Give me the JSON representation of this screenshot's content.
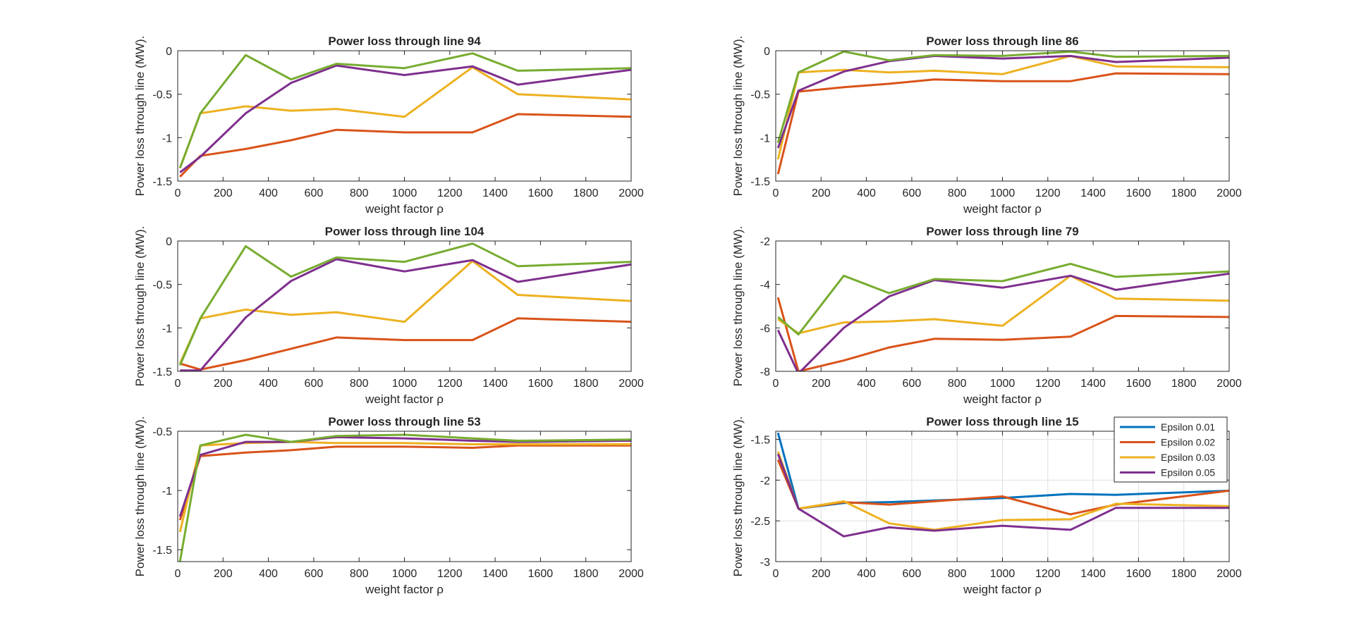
{
  "legend": {
    "entries": [
      "Epsilon 0.01",
      "Epsilon 0.02",
      "Epsilon 0.03",
      "Epsilon 0.05"
    ],
    "location": "northeast",
    "axis_index": 5
  },
  "colors": {
    "Epsilon 0.01": "#0072BD",
    "Epsilon 0.02": "#D95319",
    "Epsilon 0.03": "#EDB120",
    "Epsilon 0.05": "#7E2F8E",
    "unlabeled": "#77AC30",
    "axis": "#262626",
    "grid": "#dfdfdf"
  },
  "chart_data": [
    {
      "type": "line",
      "title": "Power loss through line 94",
      "xlabel": "weight factor ρ",
      "ylabel": "Power loss through line (MW).",
      "x": [
        10,
        100,
        300,
        500,
        700,
        1000,
        1300,
        1500,
        2000
      ],
      "xlim": [
        0,
        2000
      ],
      "ylim": [
        -1.5,
        0
      ],
      "xticks": [
        "0",
        "200",
        "400",
        "600",
        "800",
        "1000",
        "1200",
        "1400",
        "1600",
        "1800",
        "2000"
      ],
      "yticks": [
        "-1.5",
        "-1",
        "-0.5",
        "0"
      ],
      "grid": false,
      "series": [
        {
          "name": "Epsilon 0.02",
          "values": [
            -1.45,
            -1.21,
            -1.13,
            -1.03,
            -0.91,
            -0.94,
            -0.94,
            -0.73,
            -0.76
          ]
        },
        {
          "name": "Epsilon 0.03",
          "values": [
            -1.35,
            -0.72,
            -0.64,
            -0.69,
            -0.67,
            -0.76,
            -0.19,
            -0.5,
            -0.56
          ]
        },
        {
          "name": "Epsilon 0.05",
          "values": [
            -1.4,
            -1.22,
            -0.72,
            -0.37,
            -0.17,
            -0.28,
            -0.18,
            -0.39,
            -0.22
          ]
        },
        {
          "name": "",
          "values": [
            -1.35,
            -0.72,
            -0.05,
            -0.33,
            -0.15,
            -0.2,
            -0.03,
            -0.23,
            -0.2
          ]
        }
      ]
    },
    {
      "type": "line",
      "title": "Power loss through line 86",
      "xlabel": "weight factor ρ",
      "ylabel": "Power loss through line (MW).",
      "x": [
        10,
        100,
        300,
        500,
        700,
        1000,
        1300,
        1500,
        2000
      ],
      "xlim": [
        0,
        2000
      ],
      "ylim": [
        -1.5,
        0
      ],
      "xticks": [
        "0",
        "200",
        "400",
        "600",
        "800",
        "1000",
        "1200",
        "1400",
        "1600",
        "1800",
        "2000"
      ],
      "yticks": [
        "-1.5",
        "-1",
        "-0.5",
        "0"
      ],
      "grid": false,
      "series": [
        {
          "name": "Epsilon 0.02",
          "values": [
            -1.42,
            -0.47,
            -0.42,
            -0.38,
            -0.33,
            -0.35,
            -0.35,
            -0.26,
            -0.27
          ]
        },
        {
          "name": "Epsilon 0.03",
          "values": [
            -1.25,
            -0.25,
            -0.22,
            -0.25,
            -0.23,
            -0.27,
            -0.06,
            -0.18,
            -0.19
          ]
        },
        {
          "name": "Epsilon 0.05",
          "values": [
            -1.12,
            -0.46,
            -0.24,
            -0.12,
            -0.06,
            -0.09,
            -0.06,
            -0.13,
            -0.08
          ]
        },
        {
          "name": "",
          "values": [
            -1.06,
            -0.25,
            -0.01,
            -0.11,
            -0.05,
            -0.06,
            -0.01,
            -0.07,
            -0.06
          ]
        }
      ]
    },
    {
      "type": "line",
      "title": "Power loss through line 104",
      "xlabel": "weight factor ρ",
      "ylabel": "Power loss through line (MW).",
      "x": [
        10,
        100,
        300,
        500,
        700,
        1000,
        1300,
        1500,
        2000
      ],
      "xlim": [
        0,
        2000
      ],
      "ylim": [
        -1.5,
        0
      ],
      "xticks": [
        "0",
        "200",
        "400",
        "600",
        "800",
        "1000",
        "1200",
        "1400",
        "1600",
        "1800",
        "2000"
      ],
      "yticks": [
        "-1.5",
        "-1",
        "-0.5",
        "0"
      ],
      "grid": false,
      "series": [
        {
          "name": "Epsilon 0.02",
          "values": [
            -1.41,
            -1.48,
            -1.37,
            -1.24,
            -1.11,
            -1.14,
            -1.14,
            -0.89,
            -0.93
          ]
        },
        {
          "name": "Epsilon 0.03",
          "values": [
            -1.41,
            -0.89,
            -0.79,
            -0.85,
            -0.82,
            -0.93,
            -0.23,
            -0.62,
            -0.69
          ]
        },
        {
          "name": "Epsilon 0.05",
          "values": [
            -1.49,
            -1.49,
            -0.88,
            -0.46,
            -0.21,
            -0.35,
            -0.22,
            -0.47,
            -0.27
          ]
        },
        {
          "name": "",
          "values": [
            -1.43,
            -0.89,
            -0.06,
            -0.41,
            -0.19,
            -0.24,
            -0.03,
            -0.29,
            -0.24
          ]
        }
      ]
    },
    {
      "type": "line",
      "title": "Power loss through line 79",
      "xlabel": "weight factor ρ",
      "ylabel": "Power loss through line (MW).",
      "x": [
        10,
        100,
        300,
        500,
        700,
        1000,
        1300,
        1500,
        2000
      ],
      "xlim": [
        0,
        2000
      ],
      "ylim": [
        -8,
        -2
      ],
      "xticks": [
        "0",
        "200",
        "400",
        "600",
        "800",
        "1000",
        "1200",
        "1400",
        "1600",
        "1800",
        "2000"
      ],
      "yticks": [
        "-8",
        "-6",
        "-4",
        "-2"
      ],
      "grid": false,
      "series": [
        {
          "name": "Epsilon 0.02",
          "values": [
            -4.6,
            -8.0,
            -7.5,
            -6.9,
            -6.5,
            -6.55,
            -6.4,
            -5.45,
            -5.5
          ]
        },
        {
          "name": "Epsilon 0.03",
          "values": [
            -5.6,
            -6.25,
            -5.75,
            -5.7,
            -5.6,
            -5.9,
            -3.6,
            -4.65,
            -4.75
          ]
        },
        {
          "name": "Epsilon 0.05",
          "values": [
            -6.1,
            -8.1,
            -6.0,
            -4.55,
            -3.8,
            -4.15,
            -3.6,
            -4.25,
            -3.5
          ]
        },
        {
          "name": "",
          "values": [
            -5.5,
            -6.3,
            -3.6,
            -4.4,
            -3.75,
            -3.85,
            -3.05,
            -3.65,
            -3.4
          ]
        }
      ]
    },
    {
      "type": "line",
      "title": "Power loss through line 53",
      "xlabel": "weight factor ρ",
      "ylabel": "Power loss through line (MW).",
      "x": [
        10,
        100,
        300,
        500,
        700,
        1000,
        1300,
        1500,
        2000
      ],
      "xlim": [
        0,
        2000
      ],
      "ylim": [
        -1.6,
        -0.5
      ],
      "xticks": [
        "0",
        "200",
        "400",
        "600",
        "800",
        "1000",
        "1200",
        "1400",
        "1600",
        "1800",
        "2000"
      ],
      "yticks": [
        "-1.5",
        "-1",
        "-0.5"
      ],
      "grid": false,
      "series": [
        {
          "name": "Epsilon 0.02",
          "values": [
            -1.25,
            -0.71,
            -0.68,
            -0.66,
            -0.63,
            -0.63,
            -0.64,
            -0.62,
            -0.62
          ]
        },
        {
          "name": "Epsilon 0.03",
          "values": [
            -1.35,
            -0.62,
            -0.6,
            -0.59,
            -0.6,
            -0.6,
            -0.61,
            -0.61,
            -0.61
          ]
        },
        {
          "name": "Epsilon 0.05",
          "values": [
            -1.22,
            -0.7,
            -0.59,
            -0.59,
            -0.55,
            -0.56,
            -0.58,
            -0.59,
            -0.58
          ]
        },
        {
          "name": "",
          "values": [
            -1.6,
            -0.62,
            -0.53,
            -0.59,
            -0.54,
            -0.53,
            -0.56,
            -0.58,
            -0.57
          ]
        }
      ]
    },
    {
      "type": "line",
      "title": "Power loss through line 15",
      "xlabel": "weight factor ρ",
      "ylabel": "Power loss through line (MW).",
      "x": [
        10,
        100,
        300,
        500,
        700,
        1000,
        1300,
        1500,
        2000
      ],
      "xlim": [
        0,
        2000
      ],
      "ylim": [
        -3,
        -1.4
      ],
      "xticks": [
        "0",
        "200",
        "400",
        "600",
        "800",
        "1000",
        "1200",
        "1400",
        "1600",
        "1800",
        "2000"
      ],
      "yticks": [
        "-3",
        "-2.5",
        "-2",
        "-1.5"
      ],
      "grid": true,
      "series": [
        {
          "name": "Epsilon 0.01",
          "values": [
            -1.42,
            -2.35,
            -2.28,
            -2.27,
            -2.25,
            -2.22,
            -2.17,
            -2.18,
            -2.13
          ]
        },
        {
          "name": "Epsilon 0.02",
          "values": [
            -1.75,
            -2.35,
            -2.27,
            -2.3,
            -2.26,
            -2.2,
            -2.42,
            -2.3,
            -2.13
          ]
        },
        {
          "name": "Epsilon 0.03",
          "values": [
            -1.65,
            -2.35,
            -2.26,
            -2.53,
            -2.61,
            -2.49,
            -2.48,
            -2.29,
            -2.32
          ]
        },
        {
          "name": "Epsilon 0.05",
          "values": [
            -1.68,
            -2.35,
            -2.69,
            -2.58,
            -2.62,
            -2.56,
            -2.61,
            -2.34,
            -2.34
          ]
        }
      ]
    }
  ]
}
